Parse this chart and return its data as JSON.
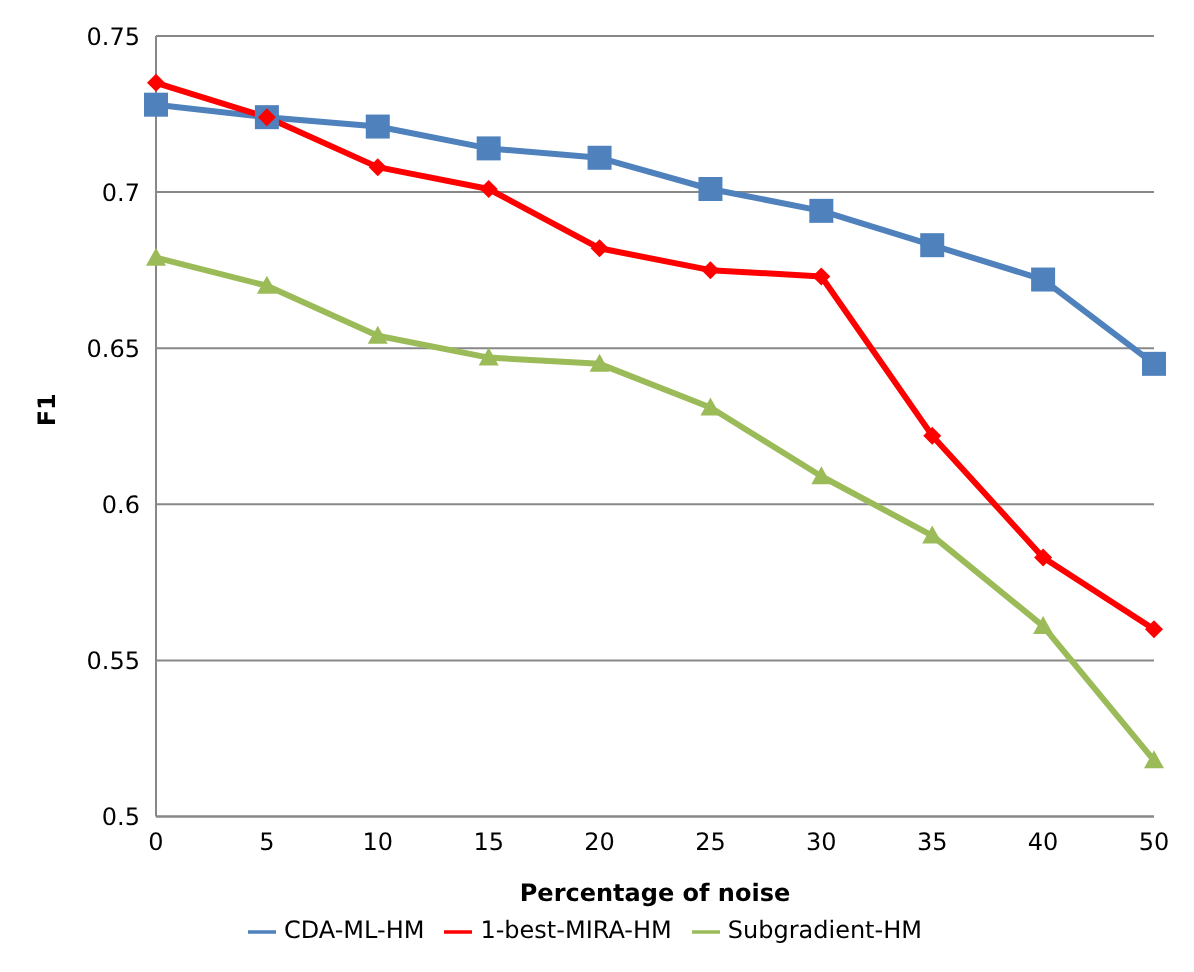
{
  "chart_data": {
    "type": "line",
    "xlabel": "Percentage of noise",
    "ylabel": "F1",
    "categories": [
      "0",
      "5",
      "10",
      "15",
      "20",
      "25",
      "30",
      "35",
      "40",
      "50"
    ],
    "series": [
      {
        "name": "CDA-ML-HM",
        "color": "#4f81bd",
        "marker": "square",
        "values": [
          0.728,
          0.724,
          0.721,
          0.714,
          0.711,
          0.701,
          0.694,
          0.683,
          0.672,
          0.645
        ]
      },
      {
        "name": "1-best-MIRA-HM",
        "color": "#ff0000",
        "marker": "diamond",
        "values": [
          0.735,
          0.724,
          0.708,
          0.701,
          0.682,
          0.675,
          0.673,
          0.622,
          0.583,
          0.56
        ]
      },
      {
        "name": "Subgradient-HM",
        "color": "#9bbb59",
        "marker": "triangle",
        "values": [
          0.679,
          0.67,
          0.654,
          0.647,
          0.645,
          0.631,
          0.609,
          0.59,
          0.561,
          0.518
        ]
      }
    ],
    "ylim": [
      0.5,
      0.75
    ],
    "yticks": [
      0.5,
      0.55,
      0.6,
      0.65,
      0.7,
      0.75
    ],
    "grid": "y",
    "legend": "bottom"
  }
}
